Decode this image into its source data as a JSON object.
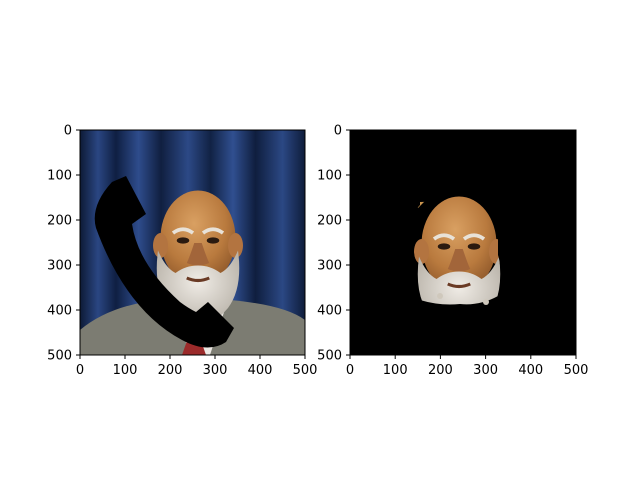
{
  "chart_data": [
    {
      "type": "image",
      "content": "photo of a bald older man with a white beard wearing a grey suit and red tie in front of a dark blue curtain, with a black telephone-handset shape overlaid on the left side",
      "xlim": [
        0,
        500
      ],
      "ylim": [
        500,
        0
      ],
      "x_ticks": [
        0,
        100,
        200,
        300,
        400,
        500
      ],
      "y_ticks": [
        0,
        100,
        200,
        300,
        400,
        500
      ],
      "y_inverted": true
    },
    {
      "type": "image",
      "content": "segmentation result showing only the man's face and beard (skin region) on a black background",
      "xlim": [
        0,
        500
      ],
      "ylim": [
        500,
        0
      ],
      "x_ticks": [
        0,
        100,
        200,
        300,
        400,
        500
      ],
      "y_ticks": [
        0,
        100,
        200,
        300,
        400,
        500
      ],
      "y_inverted": true
    }
  ],
  "colors": {
    "curtain_dark": "#0f1e3d",
    "curtain_light": "#2d4a85",
    "skin": "#c78a4a",
    "beard": "#ddd8d0",
    "suit": "#7a7a70",
    "tie": "#9b2a2a",
    "shirt": "#ece8e4",
    "mask_bg": "#000000"
  }
}
